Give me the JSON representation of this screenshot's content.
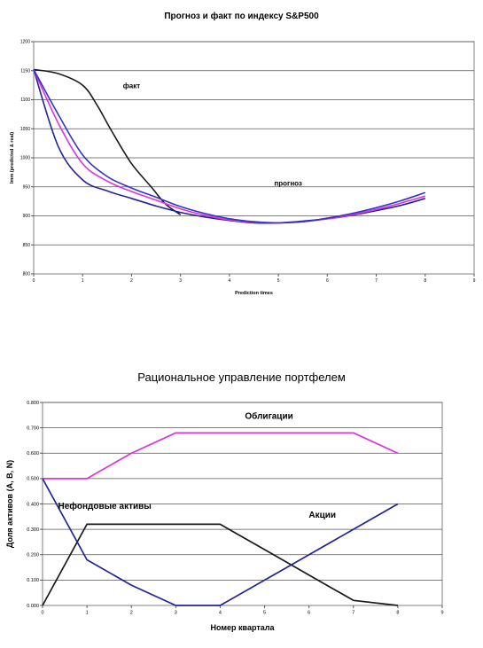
{
  "chart_data": [
    {
      "type": "line",
      "title": "Прогноз и факт по индексу S&P500",
      "xlabel": "Prediction times",
      "ylabel": "Imm (predicted & real)",
      "xlim": [
        0,
        9
      ],
      "ylim": [
        800,
        1200
      ],
      "xticks": [
        "0",
        "1",
        "2",
        "3",
        "4",
        "5",
        "6",
        "7",
        "8",
        "9"
      ],
      "yticks": [
        "800",
        "850",
        "900",
        "950",
        "1000",
        "1050",
        "1100",
        "1150",
        "1200"
      ],
      "grid": true,
      "annotations": [
        {
          "text": "факт",
          "x": 2.0,
          "y": 1120
        },
        {
          "text": "прогноз",
          "x": 5.2,
          "y": 952
        }
      ],
      "series": [
        {
          "color": "#1a1a1a",
          "x": [
            0,
            0.5,
            1,
            1.3,
            1.6,
            2,
            2.4,
            2.7,
            3
          ],
          "y": [
            1152,
            1145,
            1125,
            1090,
            1045,
            990,
            950,
            920,
            902
          ]
        },
        {
          "color": "#22229a",
          "x": [
            0,
            0.5,
            1,
            1.5,
            2,
            2.5,
            3,
            3.5,
            4,
            4.5,
            5,
            5.5,
            6,
            6.5,
            7,
            7.5,
            8
          ],
          "y": [
            1152,
            1020,
            962,
            943,
            930,
            917,
            906,
            898,
            892,
            888,
            888,
            891,
            895,
            901,
            909,
            918,
            930
          ]
        },
        {
          "color": "#dd33dd",
          "x": [
            0,
            0.5,
            1,
            1.5,
            2,
            2.5,
            3,
            3.5,
            4,
            4.5,
            5,
            5.5,
            6,
            6.5,
            7,
            7.5,
            8
          ],
          "y": [
            1152,
            1060,
            990,
            960,
            942,
            927,
            912,
            901,
            893,
            889,
            888,
            890,
            895,
            902,
            911,
            922,
            934
          ]
        },
        {
          "color": "#3333cc",
          "x": [
            0,
            0.5,
            1,
            1.5,
            2,
            2.5,
            3,
            3.5,
            4,
            4.5,
            5,
            5.5,
            6,
            6.5,
            7,
            7.5,
            8
          ],
          "y": [
            1152,
            1075,
            1005,
            968,
            948,
            932,
            916,
            904,
            895,
            890,
            888,
            890,
            896,
            904,
            914,
            926,
            940
          ]
        }
      ]
    },
    {
      "type": "line",
      "title": "Рациональное управление портфелем",
      "xlabel": "Номер квартала",
      "ylabel": "Доля активов (A, B, N)",
      "xlim": [
        0,
        9
      ],
      "ylim": [
        0,
        0.8
      ],
      "xticks": [
        "0",
        "1",
        "2",
        "3",
        "4",
        "5",
        "6",
        "7",
        "8",
        "9"
      ],
      "yticks": [
        "0.000",
        "0.100",
        "0.200",
        "0.300",
        "0.400",
        "0.500",
        "0.600",
        "0.700",
        "0.800"
      ],
      "grid": true,
      "annotations": [
        {
          "text": "Облигации",
          "x": 5.1,
          "y": 0.735
        },
        {
          "text": "Нефондовые активы",
          "x": 1.4,
          "y": 0.38
        },
        {
          "text": "Акции",
          "x": 6.3,
          "y": 0.345
        }
      ],
      "series": [
        {
          "color": "#dd33dd",
          "x": [
            0,
            1,
            2,
            3,
            4,
            5,
            6,
            7,
            8
          ],
          "y": [
            0.5,
            0.5,
            0.6,
            0.68,
            0.68,
            0.68,
            0.68,
            0.68,
            0.6
          ]
        },
        {
          "color": "#1a1a1a",
          "x": [
            0,
            1,
            2,
            3,
            4,
            5,
            6,
            7,
            8
          ],
          "y": [
            0.0,
            0.32,
            0.32,
            0.32,
            0.32,
            0.22,
            0.12,
            0.02,
            0.0
          ]
        },
        {
          "color": "#22229a",
          "x": [
            0,
            1,
            2,
            3,
            4,
            5,
            6,
            7,
            8
          ],
          "y": [
            0.5,
            0.18,
            0.08,
            0.0,
            0.0,
            0.1,
            0.2,
            0.3,
            0.4
          ]
        }
      ]
    }
  ]
}
